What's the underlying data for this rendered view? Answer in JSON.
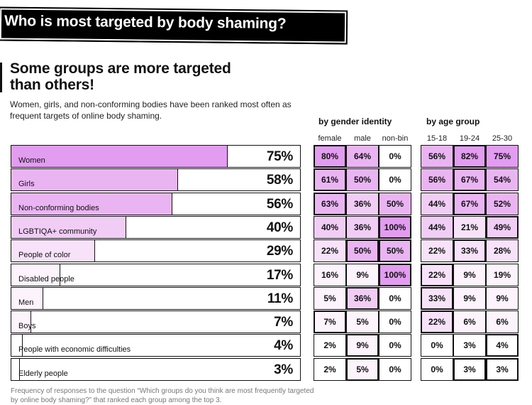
{
  "header": {
    "banner_title": "Who is most targeted by body shaming?",
    "subtitle_line1": "Some groups are more targeted",
    "subtitle_line2": "than others!",
    "description": "Women, girls, and non-conforming bodies have been ranked most often as frequent targets of online body shaming."
  },
  "colors": {
    "level5": "#e29cf0",
    "level4": "#eab4f3",
    "level3": "#f1cdf6",
    "level2": "#f7e2fa",
    "level1": "#fcf3fd",
    "level0": "#ffffff"
  },
  "chart_data": {
    "type": "bar",
    "orientation": "horizontal",
    "title": "Who is most targeted by body shaming?",
    "xlim": [
      0,
      100
    ],
    "unit": "%",
    "categories": [
      "Women",
      "Girls",
      "Non-conforming bodies",
      "LGBTIQA+ community",
      "People of color",
      "Disabled people",
      "Men",
      "Boys",
      "People with economic difficulties",
      "Elderly people"
    ],
    "values": [
      75,
      58,
      56,
      40,
      29,
      17,
      11,
      7,
      4,
      3
    ],
    "value_labels": [
      "75%",
      "58%",
      "56%",
      "40%",
      "29%",
      "17%",
      "11%",
      "7%",
      "4%",
      "3%"
    ],
    "by_gender_identity": {
      "title": "by gender identity",
      "columns": [
        "female",
        "male",
        "non-bin"
      ],
      "rows": [
        [
          80,
          64,
          0
        ],
        [
          61,
          50,
          0
        ],
        [
          63,
          36,
          50
        ],
        [
          40,
          36,
          100
        ],
        [
          22,
          50,
          50
        ],
        [
          16,
          9,
          100
        ],
        [
          5,
          36,
          0
        ],
        [
          7,
          5,
          0
        ],
        [
          2,
          9,
          0
        ],
        [
          2,
          5,
          0
        ]
      ]
    },
    "by_age_group": {
      "title": "by age group",
      "columns": [
        "15-18",
        "19-24",
        "25-30"
      ],
      "rows": [
        [
          56,
          82,
          75
        ],
        [
          56,
          67,
          54
        ],
        [
          44,
          67,
          52
        ],
        [
          44,
          21,
          49
        ],
        [
          22,
          33,
          28
        ],
        [
          22,
          9,
          19
        ],
        [
          33,
          9,
          9
        ],
        [
          22,
          6,
          6
        ],
        [
          0,
          3,
          4
        ],
        [
          0,
          3,
          3
        ]
      ]
    }
  },
  "footnote": "Frequency of responses to the question “Which groups do you think are most frequently targeted by online body shaming?” that ranked each group among the top 3."
}
